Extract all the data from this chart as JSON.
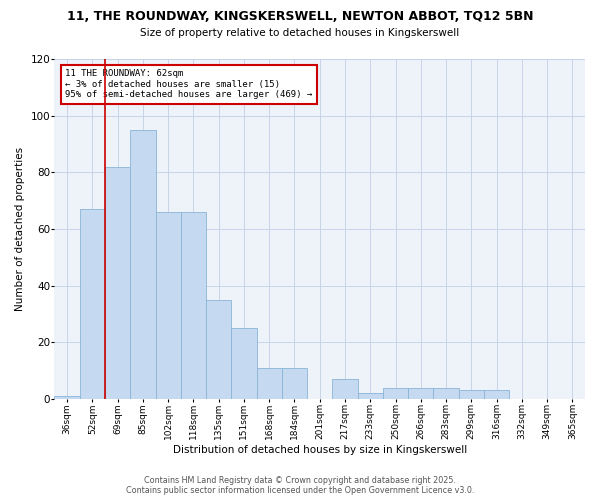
{
  "title": "11, THE ROUNDWAY, KINGSKERSWELL, NEWTON ABBOT, TQ12 5BN",
  "subtitle": "Size of property relative to detached houses in Kingskerswell",
  "xlabel": "Distribution of detached houses by size in Kingskerswell",
  "ylabel": "Number of detached properties",
  "bar_color": "#c5d9f0",
  "bar_edge_color": "#8ab4d8",
  "categories": [
    "36sqm",
    "52sqm",
    "69sqm",
    "85sqm",
    "102sqm",
    "118sqm",
    "135sqm",
    "151sqm",
    "168sqm",
    "184sqm",
    "201sqm",
    "217sqm",
    "233sqm",
    "250sqm",
    "266sqm",
    "283sqm",
    "299sqm",
    "316sqm",
    "332sqm",
    "349sqm",
    "365sqm"
  ],
  "values": [
    1,
    67,
    82,
    95,
    66,
    66,
    35,
    25,
    11,
    11,
    0,
    7,
    2,
    4,
    4,
    4,
    3,
    3,
    0,
    0,
    0
  ],
  "ylim": [
    0,
    120
  ],
  "yticks": [
    0,
    20,
    40,
    60,
    80,
    100,
    120
  ],
  "vline_color": "#cc0000",
  "vline_x": 1.5,
  "annotation_line1": "11 THE ROUNDWAY: 62sqm",
  "annotation_line2": "← 3% of detached houses are smaller (15)",
  "annotation_line3": "95% of semi-detached houses are larger (469) →",
  "annotation_box_color": "#ffffff",
  "annotation_border_color": "#cc0000",
  "footer_line1": "Contains HM Land Registry data © Crown copyright and database right 2025.",
  "footer_line2": "Contains public sector information licensed under the Open Government Licence v3.0.",
  "background_color": "#ffffff",
  "plot_bg_color": "#eef2f9",
  "grid_color": "#c8d4e8"
}
